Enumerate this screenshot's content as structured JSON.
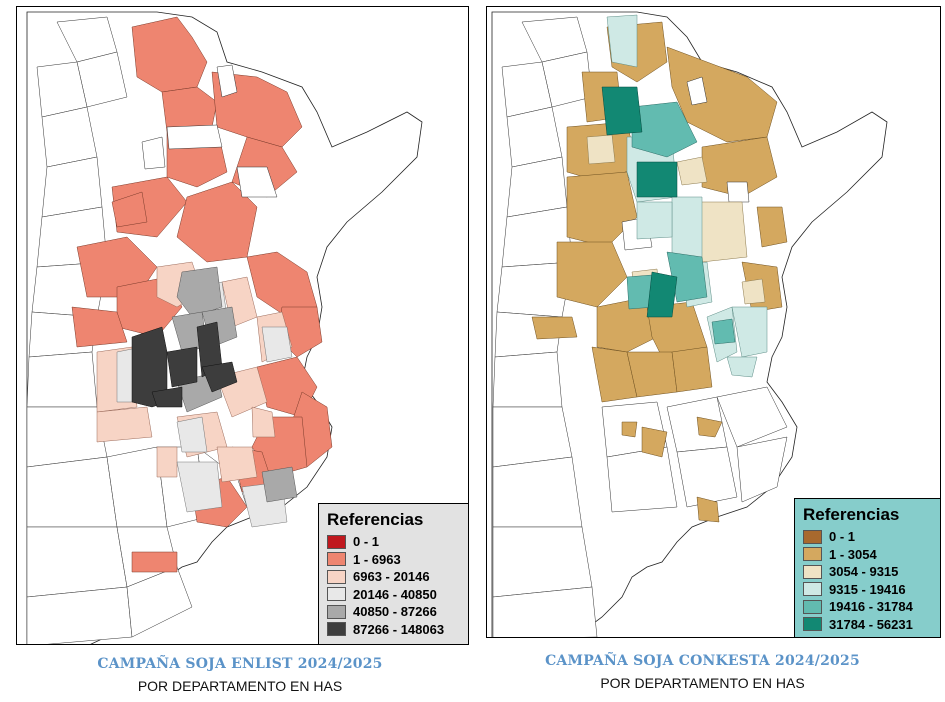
{
  "maps": [
    {
      "title": "CAMPAÑA SOJA ENLIST 2024/2025",
      "subtitle": "POR DEPARTAMENTO EN HAS",
      "legend": {
        "title": "Referencias",
        "items": [
          {
            "label": "0 - 1",
            "color": "#c0181e"
          },
          {
            "label": "1 - 6963",
            "color": "#ee8570"
          },
          {
            "label": "6963 - 20146",
            "color": "#f7d4c5"
          },
          {
            "label": "20146 - 40850",
            "color": "#e8e8e8"
          },
          {
            "label": "40850 - 87266",
            "color": "#a9a9a9"
          },
          {
            "label": "87266 - 148063",
            "color": "#3d3d3d"
          }
        ]
      }
    },
    {
      "title": "CAMPAÑA SOJA CONKESTA 2024/2025",
      "subtitle": "POR DEPARTAMENTO EN HAS",
      "legend": {
        "title": "Referencias",
        "items": [
          {
            "label": "0 - 1",
            "color": "#a8692e"
          },
          {
            "label": "1 - 3054",
            "color": "#d4a85f"
          },
          {
            "label": "3054 - 9315",
            "color": "#efe3c5"
          },
          {
            "label": "9315 - 19416",
            "color": "#cfe9e5"
          },
          {
            "label": "19416 - 31784",
            "color": "#62bbb0"
          },
          {
            "label": "31784 - 56231",
            "color": "#128873"
          }
        ]
      }
    }
  ]
}
